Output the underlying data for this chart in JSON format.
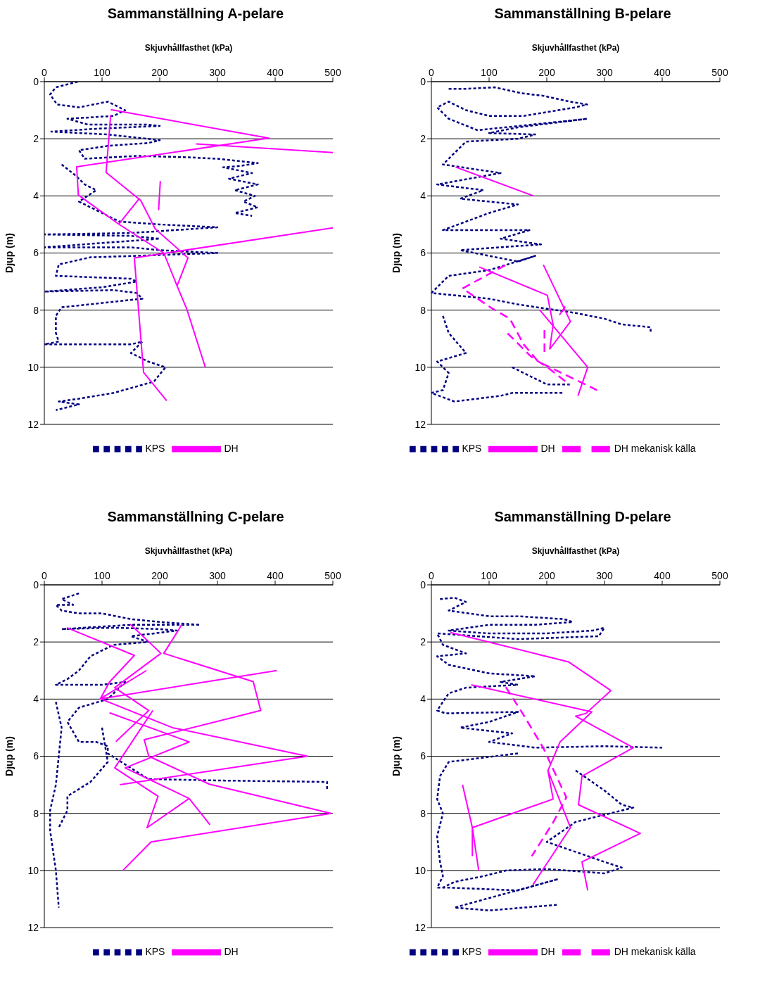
{
  "chart_data": [
    {
      "type": "line",
      "title": "Sammanställning A-pelare",
      "xlabel": "Skjuvhållfasthet (kPa)",
      "ylabel": "Djup (m)",
      "xlim": [
        0,
        500
      ],
      "xticks": [
        0,
        100,
        200,
        300,
        400,
        500
      ],
      "ylim": [
        12,
        0
      ],
      "yticks": [
        0,
        2,
        4,
        6,
        8,
        10,
        12
      ],
      "grid": "y",
      "legend": "bottom",
      "series": [
        {
          "name": "KPS",
          "color": "#000080",
          "line_style": "dotted",
          "x": [
            58,
            20,
            10,
            22,
            60,
            110,
            140,
            120,
            40,
            75,
            175,
            200,
            90,
            12,
            60,
            110,
            200,
            180,
            110,
            60,
            70,
            160,
            250,
            300,
            370,
            340,
            310,
            360,
            320,
            370,
            330,
            365,
            345,
            370,
            330,
            360,
            null,
            30,
            55,
            70,
            90,
            75,
            60,
            80,
            100,
            130,
            200,
            300,
            150,
            0,
            150,
            200,
            0,
            150,
            200,
            300,
            160,
            80,
            25,
            20,
            150,
            160,
            100,
            0,
            120,
            160,
            170,
            30,
            20,
            20,
            25,
            0,
            150,
            170,
            150,
            180,
            210,
            190,
            120,
            60,
            25,
            60,
            20
          ],
          "values": [
            0,
            0.2,
            0.45,
            0.8,
            0.9,
            0.7,
            1.0,
            1.2,
            1.3,
            1.5,
            1.5,
            1.55,
            1.65,
            1.75,
            1.8,
            1.85,
            2.05,
            2.15,
            2.25,
            2.4,
            2.7,
            2.6,
            2.65,
            2.7,
            2.85,
            2.95,
            3.0,
            3.2,
            3.4,
            3.6,
            3.8,
            4.0,
            4.2,
            4.4,
            4.6,
            4.7,
            null,
            2.9,
            3.3,
            3.6,
            3.8,
            4.0,
            4.2,
            4.4,
            4.6,
            4.9,
            5.0,
            5.1,
            5.3,
            5.35,
            5.4,
            5.5,
            5.8,
            5.8,
            5.9,
            6.0,
            6.1,
            6.15,
            6.4,
            6.8,
            6.9,
            7.0,
            7.2,
            7.35,
            7.3,
            7.4,
            7.6,
            7.9,
            8.2,
            8.8,
            9.1,
            9.2,
            9.2,
            9.1,
            9.5,
            9.8,
            10.0,
            10.5,
            10.9,
            11.1,
            11.2,
            11.3,
            11.5
          ]
        },
        {
          "name": "DH",
          "color": "#ff00ff",
          "line_style": "solid",
          "x": [
            115,
            389,
            56,
            59,
            129,
            207,
            230,
            247,
            279,
            null,
            115,
            107,
            167,
            192,
            249,
            230,
            null,
            165,
            129,
            null,
            500,
            156,
            172,
            212,
            null,
            263,
            500,
            null,
            201,
            198
          ],
          "values": [
            0.98,
            1.98,
            2.98,
            3.97,
            4.99,
            6.0,
            7.15,
            7.97,
            10.0,
            null,
            1.17,
            3.18,
            4.16,
            5.15,
            6.17,
            7.15,
            null,
            4.08,
            4.99,
            null,
            5.12,
            6.17,
            10.18,
            11.17,
            null,
            2.18,
            2.48,
            null,
            3.48,
            4.5
          ]
        }
      ]
    },
    {
      "type": "line",
      "title": "Sammanställning B-pelare",
      "xlabel": "Skjuvhållfasthet (kPa)",
      "ylabel": "Djup (m)",
      "xlim": [
        0,
        500
      ],
      "xticks": [
        0,
        100,
        200,
        300,
        400,
        500
      ],
      "ylim": [
        12,
        0
      ],
      "yticks": [
        0,
        2,
        4,
        6,
        8,
        10,
        12
      ],
      "grid": "y",
      "legend": "bottom",
      "series": [
        {
          "name": "KPS",
          "color": "#000080",
          "line_style": "dotted",
          "x": [
            30,
            60,
            110,
            155,
            195,
            240,
            270,
            250,
            160,
            100,
            60,
            30,
            10,
            30,
            80,
            200,
            270,
            150,
            100,
            180,
            150,
            60,
            20,
            120,
            10,
            90,
            50,
            150,
            100,
            20,
            170,
            120,
            190,
            50,
            150,
            180,
            100,
            30,
            0,
            100,
            150,
            250,
            300,
            330,
            380,
            380,
            null,
            20,
            30,
            60,
            10,
            30,
            20,
            0,
            40,
            120,
            140,
            230,
            null,
            140,
            200,
            240
          ],
          "values": [
            0.25,
            0.25,
            0.2,
            0.4,
            0.5,
            0.7,
            0.8,
            0.9,
            1.2,
            1.2,
            1.0,
            0.7,
            0.9,
            1.3,
            1.7,
            1.45,
            1.3,
            1.6,
            1.8,
            1.85,
            2.0,
            2.1,
            2.9,
            3.2,
            3.6,
            3.8,
            4.1,
            4.3,
            4.6,
            5.2,
            5.2,
            5.5,
            5.7,
            5.9,
            6.3,
            6.1,
            6.6,
            6.8,
            7.4,
            7.6,
            7.8,
            8.1,
            8.3,
            8.5,
            8.6,
            8.8,
            null,
            8.2,
            8.8,
            9.5,
            9.8,
            10.2,
            10.8,
            10.9,
            11.2,
            11.0,
            10.9,
            10.9,
            null,
            10.0,
            10.6,
            10.6
          ]
        },
        {
          "name": "DH",
          "color": "#ff00ff",
          "line_style": "solid",
          "x": [
            42,
            177,
            null,
            83,
            201,
            211,
            205,
            null,
            194,
            241,
            205,
            null,
            188,
            271,
            254,
            null,
            222,
            232
          ],
          "values": [
            2.99,
            4.0,
            null,
            6.49,
            7.48,
            8.51,
            9.37,
            null,
            6.41,
            8.4,
            9.37,
            null,
            8.0,
            10.0,
            11.0,
            null,
            8.17,
            7.87
          ]
        },
        {
          "name": "DH mekanisk källa",
          "color": "#ff00ff",
          "line_style": "dashed",
          "x": [
            128,
            54,
            103,
            136,
            160,
            185,
            287,
            null,
            132,
            173,
            205,
            240,
            null,
            196,
            196
          ],
          "values": [
            6.43,
            7.24,
            7.91,
            8.3,
            9.2,
            9.8,
            10.8,
            null,
            8.81,
            9.63,
            10.06,
            10.62,
            null,
            8.7,
            9.5
          ]
        }
      ]
    },
    {
      "type": "line",
      "title": "Sammanställning C-pelare",
      "xlabel": "Skjuvhållfasthet (kPa)",
      "ylabel": "Djup (m)",
      "xlim": [
        0,
        500
      ],
      "xticks": [
        0,
        100,
        200,
        300,
        400,
        500
      ],
      "ylim": [
        12,
        0
      ],
      "yticks": [
        0,
        2,
        4,
        6,
        8,
        10,
        12
      ],
      "grid": "y",
      "legend": "bottom",
      "series": [
        {
          "name": "KPS",
          "color": "#000080",
          "line_style": "dotted",
          "x": [
            60,
            30,
            50,
            20,
            30,
            60,
            100,
            150,
            200,
            270,
            150,
            30,
            120,
            200,
            230,
            150,
            180,
            120,
            80,
            60,
            40,
            20,
            100,
            140,
            110,
            60,
            40,
            60,
            90,
            110,
            110,
            180,
            300,
            490,
            490,
            null,
            20,
            30,
            25,
            20,
            10,
            10,
            15,
            20,
            25,
            null,
            100,
            110,
            80,
            40,
            40,
            25
          ],
          "values": [
            0.3,
            0.5,
            0.7,
            0.7,
            0.9,
            1.0,
            1.0,
            1.2,
            1.3,
            1.4,
            1.4,
            1.55,
            1.5,
            1.55,
            1.6,
            1.8,
            2.0,
            2.1,
            2.5,
            3.0,
            3.3,
            3.5,
            3.5,
            3.4,
            4.0,
            4.3,
            4.8,
            5.5,
            5.5,
            5.65,
            5.9,
            6.8,
            6.85,
            6.9,
            7.2,
            null,
            4.1,
            5.0,
            6.0,
            7.0,
            7.9,
            8.6,
            9.3,
            10.0,
            11.3,
            null,
            5.0,
            6.2,
            6.9,
            7.4,
            7.9,
            8.5
          ]
        },
        {
          "name": "DH",
          "color": "#ff00ff",
          "line_style": "solid",
          "x": [
            39,
            156,
            113,
            97,
            403,
            null,
            149,
            202,
            122,
            181,
            124,
            null,
            238,
            207,
            362,
            375,
            173,
            181,
            286,
            497,
            185,
            136,
            null,
            177,
            97,
            222,
            456,
            131,
            null,
            113,
            251,
            140,
            251,
            287,
            null,
            188,
            122,
            197,
            178,
            251
          ],
          "values": [
            1.5,
            2.47,
            3.4,
            3.99,
            3.0,
            null,
            1.38,
            2.4,
            3.6,
            4.4,
            5.49,
            null,
            1.4,
            2.4,
            3.39,
            4.4,
            5.42,
            6.0,
            6.98,
            8.0,
            9.0,
            10.0,
            null,
            3.0,
            3.99,
            5.0,
            6.0,
            7.0,
            null,
            4.48,
            5.5,
            6.41,
            7.48,
            8.4,
            null,
            4.4,
            6.41,
            7.4,
            8.5,
            7.48
          ]
        }
      ]
    },
    {
      "type": "line",
      "title": "Sammanställning D-pelare",
      "xlabel": "Skjuvhållfasthet (kPa)",
      "ylabel": "Djup (m)",
      "xlim": [
        0,
        500
      ],
      "xticks": [
        0,
        100,
        200,
        300,
        400,
        500
      ],
      "ylim": [
        12,
        0
      ],
      "yticks": [
        0,
        2,
        4,
        6,
        8,
        10,
        12
      ],
      "grid": "y",
      "legend": "bottom",
      "series": [
        {
          "name": "KPS",
          "color": "#000080",
          "line_style": "dotted",
          "x": [
            15,
            40,
            60,
            30,
            100,
            150,
            230,
            245,
            180,
            100,
            30,
            100,
            200,
            280,
            300,
            290,
            150,
            10,
            20,
            60,
            10,
            30,
            100,
            180,
            120,
            150,
            60,
            30,
            10,
            25,
            150,
            100,
            50,
            140,
            100,
            180,
            300,
            400,
            null,
            150,
            30,
            15,
            10,
            20,
            10,
            15,
            20,
            10,
            30,
            150,
            220,
            40,
            100,
            220,
            null,
            250,
            300,
            330,
            350,
            250,
            200,
            300,
            330,
            300,
            200,
            130,
            90,
            40,
            20
          ],
          "values": [
            0.5,
            0.45,
            0.6,
            0.9,
            1.1,
            1.1,
            1.2,
            1.3,
            1.4,
            1.4,
            1.6,
            1.7,
            1.7,
            1.6,
            1.5,
            1.8,
            1.9,
            1.7,
            2.1,
            2.4,
            2.5,
            2.8,
            3.1,
            3.2,
            3.4,
            3.5,
            3.6,
            3.8,
            4.4,
            4.5,
            4.45,
            4.8,
            5.0,
            5.2,
            5.5,
            5.7,
            5.65,
            5.7,
            null,
            5.9,
            6.2,
            6.7,
            7.5,
            8.0,
            8.8,
            9.7,
            10.2,
            10.6,
            10.6,
            10.7,
            10.3,
            11.3,
            11.4,
            11.2,
            null,
            6.5,
            7.2,
            7.7,
            7.8,
            8.3,
            9.0,
            9.7,
            9.9,
            10.1,
            9.95,
            10.0,
            10.2,
            10.4,
            10.6
          ]
        },
        {
          "name": "DH",
          "color": "#ff00ff",
          "line_style": "solid",
          "x": [
            33,
            238,
            311,
            268,
            250,
            350,
            261,
            255,
            362,
            261,
            271,
            null,
            69,
            278,
            223,
            202,
            211,
            71,
            82,
            null,
            54,
            71,
            71,
            null,
            202,
            241,
            176
          ],
          "values": [
            1.67,
            2.7,
            3.7,
            4.5,
            4.6,
            5.7,
            6.7,
            7.7,
            8.7,
            9.7,
            10.7,
            null,
            3.5,
            4.45,
            5.5,
            6.5,
            7.5,
            8.5,
            10.0,
            null,
            7.0,
            8.5,
            9.5,
            null,
            6.5,
            8.5,
            10.5
          ]
        },
        {
          "name": "DH mekanisk källa",
          "color": "#ff00ff",
          "line_style": "dashed",
          "x": [
            129,
            159,
            194,
            225,
            234,
            211,
            174
          ],
          "values": [
            3.58,
            4.53,
            5.71,
            7.06,
            7.44,
            8.32,
            9.5
          ]
        }
      ]
    }
  ]
}
